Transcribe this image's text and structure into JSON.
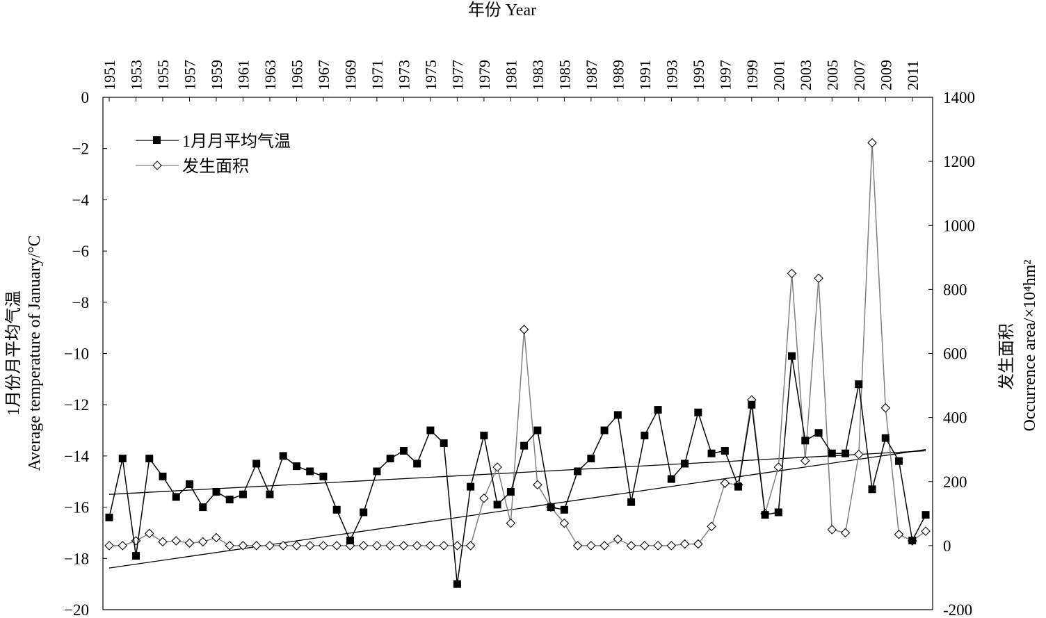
{
  "chart_data": {
    "type": "line",
    "x_axis": {
      "label": "年份 Year",
      "position": "top",
      "tick_labels": [
        "1951",
        "1953",
        "1955",
        "1957",
        "1959",
        "1961",
        "1963",
        "1965",
        "1967",
        "1969",
        "1971",
        "1973",
        "1975",
        "1977",
        "1979",
        "1981",
        "1983",
        "1985",
        "1987",
        "1989",
        "1991",
        "1993",
        "1995",
        "1997",
        "1999",
        "2001",
        "2003",
        "2005",
        "2007",
        "2009",
        "2011"
      ]
    },
    "y_left": {
      "label_cn": "1月份月平均气温",
      "label_en": "Average temperature of January/°C",
      "ylim": [
        -20,
        0
      ],
      "tick_labels": [
        "0",
        "−2",
        "−4",
        "−6",
        "−8",
        "−10",
        "−12",
        "−14",
        "−16",
        "−18",
        "−20"
      ]
    },
    "y_right": {
      "label_cn": "发生面积",
      "label_en": "Occurrence area/×10⁴hm²",
      "ylim": [
        -200,
        1400
      ],
      "tick_labels": [
        "1400",
        "1200",
        "1000",
        "800",
        "600",
        "400",
        "200",
        "0",
        "-200"
      ]
    },
    "legend": {
      "placement": "top-left"
    },
    "x": [
      1951,
      1952,
      1953,
      1954,
      1955,
      1956,
      1957,
      1958,
      1959,
      1960,
      1961,
      1962,
      1963,
      1964,
      1965,
      1966,
      1967,
      1968,
      1969,
      1970,
      1971,
      1972,
      1973,
      1974,
      1975,
      1976,
      1977,
      1978,
      1979,
      1980,
      1981,
      1982,
      1983,
      1984,
      1985,
      1986,
      1987,
      1988,
      1989,
      1990,
      1991,
      1992,
      1993,
      1994,
      1995,
      1996,
      1997,
      1998,
      1999,
      2000,
      2001,
      2002,
      2003,
      2004,
      2005,
      2006,
      2007,
      2008,
      2009,
      2010,
      2011,
      2012
    ],
    "series": [
      {
        "name": "1月月平均气温",
        "axis": "left",
        "color": "#000000",
        "marker": "filled-square",
        "values": [
          -16.4,
          -14.1,
          -17.9,
          -14.1,
          -14.8,
          -15.6,
          -15.1,
          -16.0,
          -15.4,
          -15.7,
          -15.5,
          -14.3,
          -15.5,
          -14.0,
          -14.4,
          -14.6,
          -14.8,
          -16.1,
          -17.3,
          -16.2,
          -14.6,
          -14.1,
          -13.8,
          -14.3,
          -13.0,
          -13.5,
          -19.0,
          -15.2,
          -13.2,
          -15.9,
          -15.4,
          -13.6,
          -13.0,
          -16.0,
          -16.1,
          -14.6,
          -14.1,
          -13.0,
          -12.4,
          -15.8,
          -13.2,
          -12.2,
          -14.9,
          -14.3,
          -12.3,
          -13.9,
          -13.8,
          -15.2,
          -12.0,
          -16.3,
          -16.2,
          -10.1,
          -13.4,
          -13.1,
          -13.9,
          -13.9,
          -11.2,
          -15.3,
          -13.3,
          -14.2,
          -17.3,
          -16.3
        ]
      },
      {
        "name": "发生面积",
        "axis": "right",
        "color": "#7f7f7f",
        "marker": "open-diamond",
        "values": [
          0,
          0,
          15,
          38,
          12,
          15,
          8,
          12,
          25,
          0,
          0,
          0,
          0,
          0,
          0,
          0,
          0,
          0,
          0,
          0,
          0,
          0,
          0,
          0,
          0,
          0,
          0,
          0,
          148,
          245,
          70,
          675,
          190,
          120,
          70,
          0,
          0,
          0,
          20,
          0,
          0,
          0,
          0,
          5,
          5,
          60,
          195,
          190,
          455,
          100,
          245,
          850,
          265,
          835,
          50,
          40,
          285,
          1258,
          430,
          35,
          15,
          45
        ]
      }
    ],
    "trendlines": [
      {
        "for": "1月月平均气温",
        "axis": "left",
        "x": [
          1951,
          2012
        ],
        "y": [
          -15.5,
          -13.8
        ]
      },
      {
        "for": "发生面积",
        "axis": "right",
        "x": [
          1951,
          2012
        ],
        "y": [
          -70,
          300
        ]
      }
    ]
  }
}
